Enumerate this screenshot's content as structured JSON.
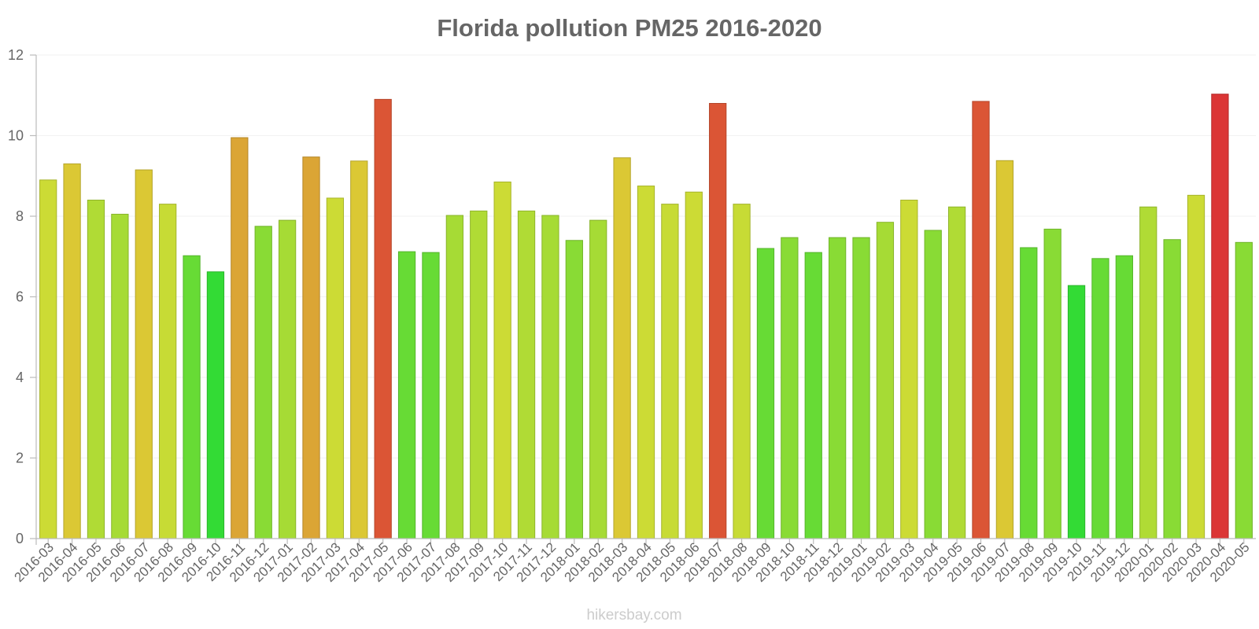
{
  "chart_data": {
    "type": "bar",
    "title": "Florida pollution PM25 2016-2020",
    "xlabel": "",
    "ylabel": "",
    "ylim": [
      0,
      12
    ],
    "yticks": [
      0,
      2,
      4,
      6,
      8,
      10,
      12
    ],
    "categories": [
      "2016-03",
      "2016-04",
      "2016-05",
      "2016-06",
      "2016-07",
      "2016-08",
      "2016-09",
      "2016-10",
      "2016-11",
      "2016-12",
      "2017-01",
      "2017-02",
      "2017-03",
      "2017-04",
      "2017-05",
      "2017-06",
      "2017-07",
      "2017-08",
      "2017-09",
      "2017-10",
      "2017-11",
      "2017-12",
      "2018-01",
      "2018-02",
      "2018-03",
      "2018-04",
      "2018-05",
      "2018-06",
      "2018-07",
      "2018-08",
      "2018-09",
      "2018-10",
      "2018-11",
      "2018-12",
      "2019-01",
      "2019-02",
      "2019-03",
      "2019-04",
      "2019-05",
      "2019-06",
      "2019-07",
      "2019-08",
      "2019-09",
      "2019-10",
      "2019-11",
      "2019-12",
      "2020-01",
      "2020-02",
      "2020-03",
      "2020-04",
      "2020-05"
    ],
    "values": [
      8.9,
      9.3,
      8.4,
      8.05,
      9.15,
      8.3,
      7.02,
      6.62,
      9.95,
      7.75,
      7.9,
      9.47,
      8.45,
      9.37,
      10.9,
      7.12,
      7.1,
      8.02,
      8.13,
      8.85,
      8.13,
      8.02,
      7.4,
      7.9,
      9.45,
      8.75,
      8.3,
      8.6,
      10.8,
      8.3,
      7.2,
      7.47,
      7.1,
      7.47,
      7.47,
      7.85,
      8.4,
      7.65,
      8.23,
      10.85,
      9.38,
      7.22,
      7.68,
      6.28,
      6.95,
      7.02,
      8.23,
      7.42,
      8.52,
      11.03,
      7.35
    ],
    "colors": [
      "#ccdb35",
      "#dbc834",
      "#b0db35",
      "#a6db35",
      "#dbc834",
      "#c7db35",
      "#67db35",
      "#33db35",
      "#dba535",
      "#89db35",
      "#a6db35",
      "#dba535",
      "#ccdb35",
      "#dbc834",
      "#db5535",
      "#67db35",
      "#67db35",
      "#a6db35",
      "#b0db35",
      "#ccdb35",
      "#b0db35",
      "#a6db35",
      "#89db35",
      "#a6db35",
      "#dbc834",
      "#ccdb35",
      "#c7db35",
      "#ccdb35",
      "#db5535",
      "#c7db35",
      "#67db35",
      "#89db35",
      "#67db35",
      "#89db35",
      "#89db35",
      "#a6db35",
      "#ccdb35",
      "#89db35",
      "#b0db35",
      "#db5535",
      "#dbc834",
      "#67db35",
      "#89db35",
      "#33db35",
      "#67db35",
      "#67db35",
      "#b0db35",
      "#89db35",
      "#ccdb35",
      "#db3535",
      "#89db35"
    ],
    "grid": true,
    "legend": "none"
  },
  "watermark": "hikersbay.com"
}
